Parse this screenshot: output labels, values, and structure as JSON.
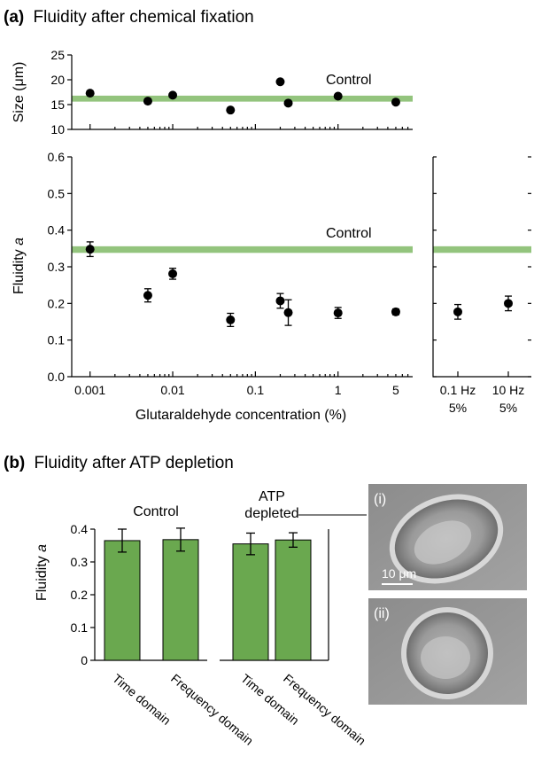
{
  "panel_a": {
    "title_letter": "(a)",
    "title_text": "Fluidity after chemical fixation",
    "control_label": "Control"
  },
  "panel_b": {
    "title_letter": "(b)",
    "title_text": "Fluidity after ATP depletion",
    "control_label": "Control",
    "atp_label_1": "ATP",
    "atp_label_2": "depleted",
    "image_labels": [
      "(i)",
      "(ii)"
    ],
    "scale_bar_label": "10 μm"
  },
  "colors": {
    "band": "#93c47d",
    "bar": "#6aa84f",
    "marker": "#000000"
  },
  "chart_data": [
    {
      "type": "scatter",
      "ylabel": "Size (μm)",
      "xscale": "log",
      "xlim": [
        0.0006,
        8
      ],
      "ylim": [
        10,
        25
      ],
      "yticks": [
        10,
        15,
        20,
        25
      ],
      "control_band": [
        15.6,
        16.8
      ],
      "x": [
        0.001,
        0.005,
        0.01,
        0.05,
        0.2,
        0.25,
        1,
        5
      ],
      "y": [
        17.3,
        15.7,
        16.9,
        13.9,
        19.6,
        15.3,
        16.7,
        15.5
      ],
      "err": [
        0.6,
        0.6,
        0.6,
        0.6,
        0.7,
        0.6,
        0.6,
        0.6
      ]
    },
    {
      "type": "scatter",
      "ylabel": "Fluidity a",
      "xlabel": "Glutaraldehyde concentration (%)",
      "xscale": "log",
      "xlim": [
        0.0006,
        8
      ],
      "ylim": [
        0.0,
        0.6
      ],
      "yticks": [
        "0.0",
        "0.1",
        "0.2",
        "0.3",
        "0.4",
        "0.5",
        "0.6"
      ],
      "xticks": [
        "0.001",
        "0.01",
        "0.1",
        "1",
        "5"
      ],
      "control_band": [
        0.338,
        0.356
      ],
      "x": [
        0.001,
        0.005,
        0.01,
        0.05,
        0.2,
        0.25,
        1,
        5
      ],
      "y": [
        0.348,
        0.222,
        0.281,
        0.155,
        0.207,
        0.175,
        0.174,
        0.177
      ],
      "err": [
        0.02,
        0.018,
        0.015,
        0.018,
        0.02,
        0.035,
        0.015,
        0.008
      ]
    },
    {
      "type": "scatter",
      "ylim": [
        0.0,
        0.6
      ],
      "categories": [
        "0.1 Hz\n5%",
        "10 Hz\n5%"
      ],
      "cat_line1": [
        "0.1 Hz",
        "10 Hz"
      ],
      "cat_line2": [
        "5%",
        "5%"
      ],
      "control_band": [
        0.338,
        0.356
      ],
      "y": [
        0.177,
        0.2
      ],
      "err": [
        0.02,
        0.02
      ]
    },
    {
      "type": "bar",
      "ylabel": "Fluidity a",
      "ylim": [
        0,
        0.4
      ],
      "yticks": [
        "0",
        "0.1",
        "0.2",
        "0.3",
        "0.4"
      ],
      "categories": [
        "Time domain",
        "Frequency domain",
        "Time domain",
        "Frequency domain"
      ],
      "values": [
        0.365,
        0.368,
        0.355,
        0.367
      ],
      "err": [
        0.035,
        0.035,
        0.033,
        0.022
      ]
    }
  ]
}
